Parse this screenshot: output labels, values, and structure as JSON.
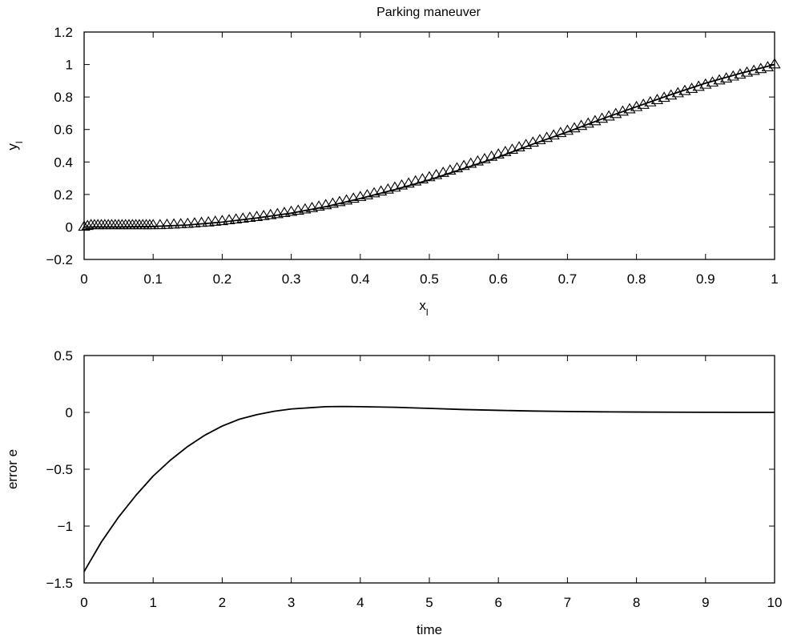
{
  "chart_data": [
    {
      "type": "line",
      "title": "Parking maneuver",
      "xlabel": "x",
      "xlabel_sub": "l",
      "ylabel": "y",
      "ylabel_sub": "l",
      "xlim": [
        0,
        1
      ],
      "ylim": [
        -0.2,
        1.2
      ],
      "xticks": [
        "0",
        "0.1",
        "0.2",
        "0.3",
        "0.4",
        "0.5",
        "0.6",
        "0.7",
        "0.8",
        "0.9",
        "1"
      ],
      "xtick_values": [
        0,
        0.1,
        0.2,
        0.3,
        0.4,
        0.5,
        0.6,
        0.7,
        0.8,
        0.9,
        1
      ],
      "yticks": [
        "−0.2",
        "0",
        "0.2",
        "0.4",
        "0.6",
        "0.8",
        "1",
        "1.2"
      ],
      "ytick_values": [
        -0.2,
        0,
        0.2,
        0.4,
        0.6,
        0.8,
        1,
        1.2
      ],
      "grid": false,
      "series": [
        {
          "style": "line",
          "x": [
            0,
            0.05,
            0.1,
            0.15,
            0.2,
            0.25,
            0.3,
            0.35,
            0.4,
            0.45,
            0.5,
            0.55,
            0.6,
            0.65,
            0.7,
            0.75,
            0.8,
            0.85,
            0.9,
            0.95,
            1
          ],
          "y": [
            0,
            0,
            0.003,
            0.012,
            0.03,
            0.055,
            0.085,
            0.125,
            0.175,
            0.23,
            0.29,
            0.36,
            0.43,
            0.51,
            0.585,
            0.665,
            0.74,
            0.815,
            0.885,
            0.945,
            1
          ]
        },
        {
          "style": "triangle-markers",
          "marker": "triangle",
          "x": [
            0,
            0.005,
            0.01,
            0.015,
            0.02,
            0.025,
            0.03,
            0.035,
            0.04,
            0.045,
            0.05,
            0.055,
            0.06,
            0.065,
            0.07,
            0.075,
            0.08,
            0.085,
            0.09,
            0.095,
            0.1,
            0.11,
            0.12,
            0.13,
            0.14,
            0.15,
            0.16,
            0.17,
            0.18,
            0.19,
            0.2,
            0.21,
            0.22,
            0.23,
            0.24,
            0.25,
            0.26,
            0.27,
            0.28,
            0.29,
            0.3,
            0.31,
            0.32,
            0.33,
            0.34,
            0.35,
            0.36,
            0.37,
            0.38,
            0.39,
            0.4,
            0.41,
            0.42,
            0.43,
            0.44,
            0.45,
            0.46,
            0.47,
            0.48,
            0.49,
            0.5,
            0.51,
            0.52,
            0.53,
            0.54,
            0.55,
            0.56,
            0.57,
            0.58,
            0.59,
            0.6,
            0.61,
            0.62,
            0.63,
            0.64,
            0.65,
            0.66,
            0.67,
            0.68,
            0.69,
            0.7,
            0.71,
            0.72,
            0.73,
            0.74,
            0.75,
            0.76,
            0.77,
            0.78,
            0.79,
            0.8,
            0.81,
            0.82,
            0.83,
            0.84,
            0.85,
            0.86,
            0.87,
            0.88,
            0.89,
            0.9,
            0.91,
            0.92,
            0.93,
            0.94,
            0.95,
            0.96,
            0.97,
            0.98,
            0.99,
            1
          ],
          "y": [
            0,
            0.005,
            0.01,
            0.01,
            0.01,
            0.01,
            0.01,
            0.01,
            0.01,
            0.01,
            0.01,
            0.01,
            0.01,
            0.01,
            0.01,
            0.01,
            0.01,
            0.01,
            0.01,
            0.01,
            0.01,
            0.01,
            0.012,
            0.014,
            0.016,
            0.018,
            0.021,
            0.024,
            0.027,
            0.031,
            0.035,
            0.04,
            0.045,
            0.05,
            0.055,
            0.06,
            0.066,
            0.072,
            0.078,
            0.085,
            0.092,
            0.099,
            0.107,
            0.115,
            0.124,
            0.133,
            0.142,
            0.152,
            0.162,
            0.173,
            0.183,
            0.194,
            0.206,
            0.217,
            0.229,
            0.241,
            0.254,
            0.266,
            0.279,
            0.292,
            0.305,
            0.318,
            0.332,
            0.346,
            0.36,
            0.374,
            0.388,
            0.402,
            0.416,
            0.431,
            0.445,
            0.46,
            0.474,
            0.489,
            0.503,
            0.518,
            0.533,
            0.547,
            0.562,
            0.577,
            0.591,
            0.606,
            0.621,
            0.635,
            0.65,
            0.665,
            0.679,
            0.694,
            0.709,
            0.723,
            0.737,
            0.751,
            0.766,
            0.78,
            0.794,
            0.808,
            0.822,
            0.836,
            0.849,
            0.862,
            0.875,
            0.888,
            0.901,
            0.913,
            0.925,
            0.937,
            0.949,
            0.96,
            0.971,
            0.982,
            1.0
          ]
        }
      ]
    },
    {
      "type": "line",
      "title": "",
      "xlabel": "time",
      "ylabel": "error e",
      "xlim": [
        0,
        10
      ],
      "ylim": [
        -1.5,
        0.5
      ],
      "xticks": [
        "0",
        "1",
        "2",
        "3",
        "4",
        "5",
        "6",
        "7",
        "8",
        "9",
        "10"
      ],
      "xtick_values": [
        0,
        1,
        2,
        3,
        4,
        5,
        6,
        7,
        8,
        9,
        10
      ],
      "yticks": [
        "−1.5",
        "−1",
        "−0.5",
        "0",
        "0.5"
      ],
      "ytick_values": [
        -1.5,
        -1,
        -0.5,
        0,
        0.5
      ],
      "grid": false,
      "series": [
        {
          "style": "line",
          "x": [
            0,
            0.25,
            0.5,
            0.75,
            1,
            1.25,
            1.5,
            1.75,
            2,
            2.25,
            2.5,
            2.75,
            3,
            3.25,
            3.5,
            3.75,
            4,
            4.5,
            5,
            5.5,
            6,
            6.5,
            7,
            7.5,
            8,
            8.5,
            9,
            9.5,
            10
          ],
          "y": [
            -1.4,
            -1.14,
            -0.92,
            -0.73,
            -0.56,
            -0.42,
            -0.3,
            -0.2,
            -0.12,
            -0.06,
            -0.02,
            0.01,
            0.03,
            0.04,
            0.05,
            0.052,
            0.05,
            0.045,
            0.035,
            0.025,
            0.018,
            0.012,
            0.008,
            0.005,
            0.003,
            0.002,
            0.001,
            0.0,
            0.0
          ]
        }
      ]
    }
  ]
}
